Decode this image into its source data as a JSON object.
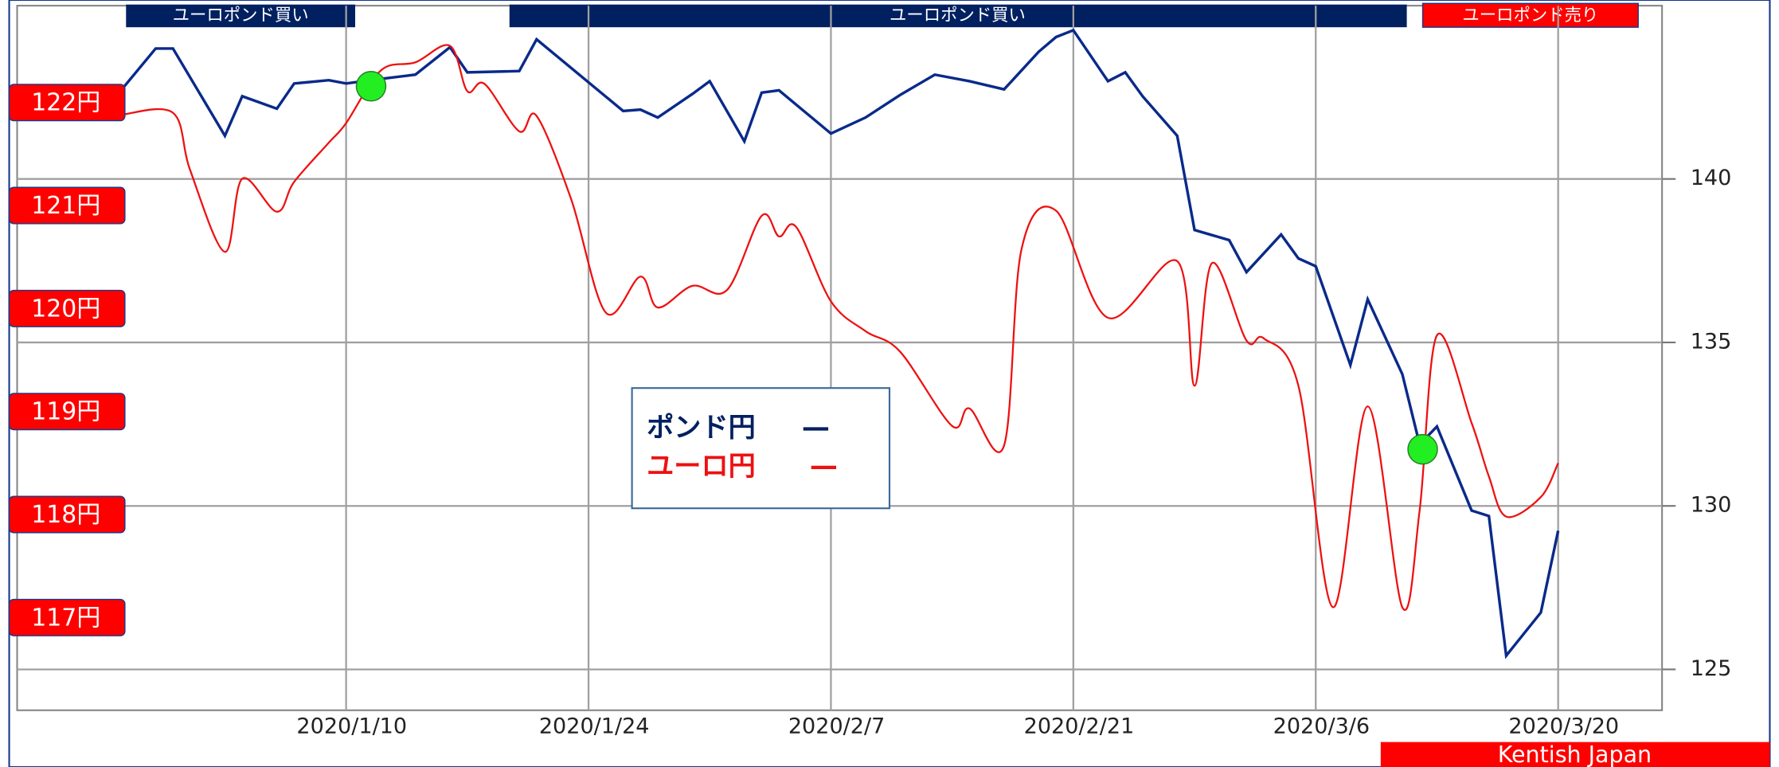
{
  "chart_data": {
    "type": "line",
    "annotations": [
      {
        "text": "ユーロポンド買い"
      },
      {
        "text": "ユーロポンド買い"
      },
      {
        "text": "ユーロポンド売り"
      }
    ],
    "credit": "Kentish Japan",
    "xlim": [
      "2019/12/22",
      "2020/3/26"
    ],
    "xticks": [
      "2020/1/10",
      "2020/1/24",
      "2020/2/7",
      "2020/2/21",
      "2020/3/6",
      "2020/3/20"
    ],
    "ylim": [
      123.75,
      145.3
    ],
    "yticks": [
      125,
      130,
      135,
      140
    ],
    "y2lim": [
      116.1,
      122.94
    ],
    "y2ticks": [
      {
        "value": 117,
        "label": "117円"
      },
      {
        "value": 118,
        "label": "118円"
      },
      {
        "value": 119,
        "label": "119円"
      },
      {
        "value": 120,
        "label": "120円"
      },
      {
        "value": 121,
        "label": "121円"
      },
      {
        "value": 122,
        "label": "122円"
      }
    ],
    "grid": true,
    "series": [
      {
        "name": "ポンド円",
        "color": "#0a2a8a",
        "axis": "y",
        "x": [
          "2019/12/28",
          "2019/12/30",
          "2019/12/31",
          "2020/1/3",
          "2020/1/4",
          "2020/1/6",
          "2020/1/7",
          "2020/1/9",
          "2020/1/10",
          "2020/1/12",
          "2020/1/14",
          "2020/1/16",
          "2020/1/17",
          "2020/1/20",
          "2020/1/21",
          "2020/1/26",
          "2020/1/27",
          "2020/1/28",
          "2020/1/30",
          "2020/1/31",
          "2020/2/2",
          "2020/2/3",
          "2020/2/4",
          "2020/2/7",
          "2020/2/9",
          "2020/2/11",
          "2020/2/13",
          "2020/2/15",
          "2020/2/17",
          "2020/2/19",
          "2020/2/20",
          "2020/2/21",
          "2020/2/23",
          "2020/2/24",
          "2020/2/25",
          "2020/2/27",
          "2020/2/28",
          "2020/3/1",
          "2020/3/2",
          "2020/3/4",
          "2020/3/5",
          "2020/3/6",
          "2020/3/8",
          "2020/3/9",
          "2020/3/11",
          "2020/3/12",
          "2020/3/13",
          "2020/3/15",
          "2020/3/16",
          "2020/3/17",
          "2020/3/19",
          "2020/3/20"
        ],
        "values": [
          142.71,
          143.99,
          143.99,
          141.32,
          142.53,
          142.15,
          142.92,
          143.02,
          142.92,
          143.06,
          143.19,
          144.03,
          143.26,
          143.3,
          144.27,
          142.08,
          142.12,
          141.88,
          142.6,
          142.99,
          141.15,
          142.64,
          142.71,
          141.39,
          141.88,
          142.57,
          143.19,
          142.99,
          142.74,
          143.89,
          144.34,
          144.55,
          142.99,
          143.26,
          142.53,
          141.32,
          138.44,
          138.13,
          137.15,
          138.3,
          137.57,
          137.33,
          134.31,
          136.32,
          134.03,
          131.88,
          132.43,
          129.86,
          129.69,
          125.42,
          126.74,
          129.24
        ]
      },
      {
        "name": "ユーロ円",
        "color": "#ee1111",
        "axis": "y2",
        "x": [
          "2019/12/28",
          "2019/12/31",
          "2020/1/1",
          "2020/1/3",
          "2020/1/4",
          "2020/1/6",
          "2020/1/7",
          "2020/1/9",
          "2020/1/10",
          "2020/1/12",
          "2020/1/14",
          "2020/1/16",
          "2020/1/17",
          "2020/1/18",
          "2020/1/20",
          "2020/1/21",
          "2020/1/23",
          "2020/1/25",
          "2020/1/27",
          "2020/1/28",
          "2020/1/30",
          "2020/2/1",
          "2020/2/3",
          "2020/2/4",
          "2020/2/5",
          "2020/2/7",
          "2020/2/9",
          "2020/2/11",
          "2020/2/14",
          "2020/2/15",
          "2020/2/17",
          "2020/2/18",
          "2020/2/20",
          "2020/2/23",
          "2020/2/27",
          "2020/2/28",
          "2020/2/29",
          "2020/3/2",
          "2020/3/3",
          "2020/3/5",
          "2020/3/7",
          "2020/3/9",
          "2020/3/11",
          "2020/3/12",
          "2020/3/13",
          "2020/3/15",
          "2020/3/16",
          "2020/3/17",
          "2020/3/19",
          "2020/3/20"
        ],
        "values": [
          121.88,
          121.9,
          121.34,
          120.55,
          121.26,
          120.94,
          121.23,
          121.61,
          121.8,
          122.31,
          122.39,
          122.55,
          122.11,
          122.18,
          121.72,
          121.87,
          121.06,
          119.96,
          120.31,
          120.01,
          120.22,
          120.18,
          120.9,
          120.7,
          120.79,
          120.07,
          119.78,
          119.58,
          118.86,
          119.03,
          118.67,
          120.57,
          120.95,
          119.91,
          120.46,
          119.25,
          120.44,
          119.69,
          119.71,
          119.25,
          117.1,
          119.05,
          117.1,
          118.04,
          119.74,
          118.89,
          118.37,
          117.98,
          118.17,
          118.5
        ]
      }
    ]
  }
}
